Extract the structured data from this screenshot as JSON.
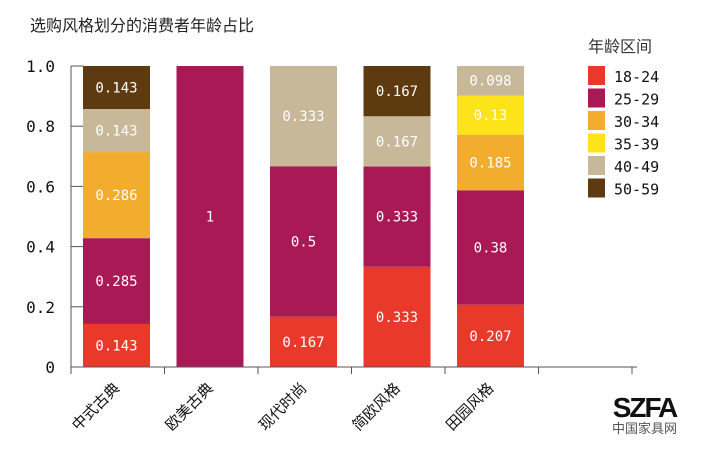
{
  "chart_data": {
    "type": "stacked-bar",
    "title": "选购风格划分的消费者年龄占比",
    "categories": [
      "中式古典",
      "欧美古典",
      "现代时尚",
      "简欧风格",
      "田园风格"
    ],
    "ylim": [
      0,
      1.0
    ],
    "yticks": [
      "0",
      "0.2",
      "0.4",
      "0.6",
      "0.8",
      "1.0"
    ],
    "legend_title": "年龄区间",
    "legend_position": "right",
    "grid": false,
    "series": [
      {
        "name": "18-24",
        "color": "#e8392b",
        "values": [
          0.143,
          0,
          0.167,
          0.333,
          0.207
        ]
      },
      {
        "name": "25-29",
        "color": "#a81955",
        "values": [
          0.285,
          1,
          0.5,
          0.333,
          0.38
        ]
      },
      {
        "name": "30-34",
        "color": "#f3ad2e",
        "values": [
          0.286,
          0,
          0,
          0,
          0.185
        ]
      },
      {
        "name": "35-39",
        "color": "#fde41a",
        "values": [
          0,
          0,
          0,
          0,
          0.13
        ]
      },
      {
        "name": "40-49",
        "color": "#c8b89a",
        "values": [
          0.143,
          0,
          0.333,
          0.167,
          0.098
        ]
      },
      {
        "name": "50-59",
        "color": "#5e3a10",
        "values": [
          0.143,
          0,
          0,
          0.167,
          0
        ]
      }
    ]
  },
  "watermark": {
    "logo": "SZFA",
    "text": "中国家具网"
  }
}
